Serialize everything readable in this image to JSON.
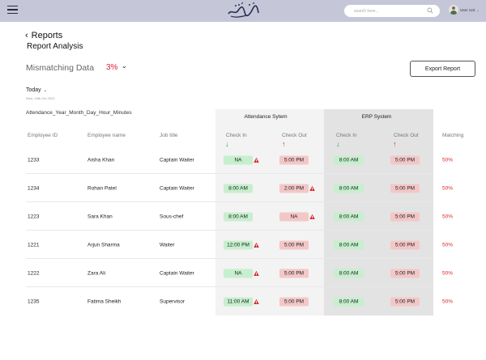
{
  "topbar": {
    "search_placeholder": "search here...",
    "user_name": "User 123",
    "user_chevron": "⌄"
  },
  "header": {
    "back_icon": "‹",
    "title": "Reports",
    "subtitle": "Report Analysis"
  },
  "mismatch": {
    "label": "Mismatching Data",
    "value": "3%",
    "chevron": "⌄"
  },
  "export_label": "Export Report",
  "filter": {
    "period": "Today",
    "chevron": "⌄",
    "date": "Wed, 19th Oct 2023"
  },
  "file_name": "Attendance_Year_Month_Day_Hour_Minutes",
  "groups": {
    "attendance": "Attendance Sytem",
    "erp": "ERP System"
  },
  "columns": {
    "employee_id": "Employee ID",
    "employee_name": "Employee name",
    "job_title": "Job title",
    "att_check_in": "Check In",
    "att_check_out": "Check Out",
    "erp_check_in": "Check In",
    "erp_check_out": "Check Out",
    "matching": "Matching",
    "arrow_in": "↓",
    "arrow_out": "↑"
  },
  "colors": {
    "accent_red": "#d9262d",
    "accent_green": "#22a83a",
    "pill_green": "#c6efce",
    "pill_red": "#f4c7c7",
    "topbar": "#c5c7d8"
  },
  "rows": [
    {
      "id": "1233",
      "name": "Aisha Khan",
      "job": "Captain Waiter",
      "att_in": "NA",
      "att_in_warn": true,
      "att_out": "5:00 PM",
      "att_out_warn": false,
      "erp_in": "8:00 AM",
      "erp_out": "5:00 PM",
      "match": "50%"
    },
    {
      "id": "1234",
      "name": "Rohan Patel",
      "job": "Captain Waiter",
      "att_in": "8:00 AM",
      "att_in_warn": false,
      "att_out": "2:00 PM",
      "att_out_warn": true,
      "erp_in": "8:00 AM",
      "erp_out": "5:00 PM",
      "match": "50%"
    },
    {
      "id": "1223",
      "name": "Sara Khan",
      "job": "Sous-chef",
      "att_in": "8:00 AM",
      "att_in_warn": false,
      "att_out": "NA",
      "att_out_warn": true,
      "erp_in": "8:00 AM",
      "erp_out": "5:00 PM",
      "match": "50%"
    },
    {
      "id": "1221",
      "name": "Arjun Sharma",
      "job": "Waiter",
      "att_in": "12:00 PM",
      "att_in_warn": true,
      "att_out": "5:00 PM",
      "att_out_warn": false,
      "erp_in": "8:00 AM",
      "erp_out": "5:00 PM",
      "match": "50%"
    },
    {
      "id": "1222",
      "name": "Zara Ali",
      "job": "Captain Waiter",
      "att_in": "NA",
      "att_in_warn": true,
      "att_out": "5:00 PM",
      "att_out_warn": false,
      "erp_in": "8:00 AM",
      "erp_out": "5:00 PM",
      "match": "50%"
    },
    {
      "id": "1235",
      "name": "Fatima Sheikh",
      "job": "Supervisor",
      "att_in": "11:00 AM",
      "att_in_warn": true,
      "att_out": "5:00 PM",
      "att_out_warn": false,
      "erp_in": "8:00 AM",
      "erp_out": "5:00 PM",
      "match": "50%"
    }
  ]
}
